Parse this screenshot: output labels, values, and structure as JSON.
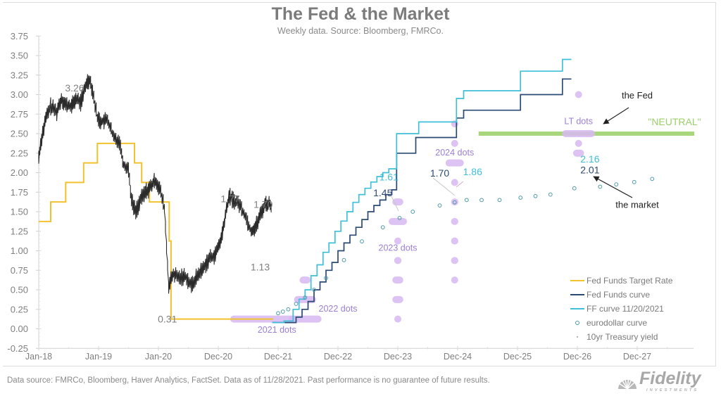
{
  "header": {
    "title": "The Fed & the Market",
    "subtitle": "Weekly data.  Source: Bloomberg, FMRCo."
  },
  "footer": {
    "disclaimer": "Data source: FMRCo, Bloomberg, Haver Analytics, FactSet. Data as of 11/28/2021. Past performance is no guarantee of future results.",
    "logo_text": "Fidelity",
    "logo_subtext": "INVESTMENTS"
  },
  "colors": {
    "fed_funds_target": "#f2c12e",
    "fed_funds_curve": "#2b4a73",
    "ff_curve_nov": "#3fbfd8",
    "eurodollar": "#4f9aa8",
    "treasury": "#2b2b2b",
    "dots": "#d7b8f2",
    "dots_label": "#9b7fd4",
    "neutral": "#a8d67a",
    "axis_text": "#7f7f7f"
  },
  "chart_data": {
    "type": "line",
    "title": "The Fed & the Market",
    "subtitle": "Weekly data.  Source: Bloomberg, FMRCo.",
    "xlabel": "",
    "ylabel": "",
    "ylim": [
      -0.25,
      3.75
    ],
    "xlim": [
      2018.0,
      2029.0
    ],
    "yticks": [
      "3.75",
      "3.50",
      "3.25",
      "3.00",
      "2.75",
      "2.50",
      "2.25",
      "2.00",
      "1.75",
      "1.50",
      "1.25",
      "1.00",
      "0.75",
      "0.50",
      "0.25",
      "0.00",
      "-0.25"
    ],
    "ytick_values": [
      3.75,
      3.5,
      3.25,
      3.0,
      2.75,
      2.5,
      2.25,
      2.0,
      1.75,
      1.5,
      1.25,
      1.0,
      0.75,
      0.5,
      0.25,
      0.0,
      -0.25
    ],
    "xticks": [
      {
        "label": "Jan-18",
        "x": 2018.0
      },
      {
        "label": "Jan-19",
        "x": 2019.0
      },
      {
        "label": "Jan-20",
        "x": 2020.0
      },
      {
        "label": "Dec-20",
        "x": 2021.0
      },
      {
        "label": "Dec-21",
        "x": 2022.0
      },
      {
        "label": "Dec-22",
        "x": 2023.0
      },
      {
        "label": "Dec-23",
        "x": 2024.0
      },
      {
        "label": "Dec-24",
        "x": 2025.0
      },
      {
        "label": "Dec-25",
        "x": 2026.0
      },
      {
        "label": "Dec-26",
        "x": 2027.0
      },
      {
        "label": "Dec-27",
        "x": 2028.0
      }
    ],
    "grid": false,
    "legend_position": "bottom-right",
    "legend": [
      {
        "label": "Fed Funds Target Rate",
        "kind": "line",
        "color_key": "fed_funds_target"
      },
      {
        "label": "Fed Funds curve",
        "kind": "line",
        "color_key": "fed_funds_curve"
      },
      {
        "label": "FF curve 11/20/2021",
        "kind": "line",
        "color_key": "ff_curve_nov"
      },
      {
        "label": "eurodollar curve",
        "kind": "circle",
        "color_key": "eurodollar"
      },
      {
        "label": "10yr Treasury yield",
        "kind": "dot",
        "color_key": "treasury"
      }
    ],
    "series": [
      {
        "name": "Fed Funds Target Rate",
        "style": "step",
        "points": [
          [
            2018.0,
            1.375
          ],
          [
            2018.2,
            1.375
          ],
          [
            2018.2,
            1.625
          ],
          [
            2018.45,
            1.625
          ],
          [
            2018.45,
            1.875
          ],
          [
            2018.75,
            1.875
          ],
          [
            2018.75,
            2.125
          ],
          [
            2018.98,
            2.125
          ],
          [
            2018.98,
            2.375
          ],
          [
            2019.6,
            2.375
          ],
          [
            2019.6,
            2.125
          ],
          [
            2019.72,
            2.125
          ],
          [
            2019.72,
            1.875
          ],
          [
            2019.85,
            1.875
          ],
          [
            2019.85,
            1.625
          ],
          [
            2020.18,
            1.625
          ],
          [
            2020.18,
            1.125
          ],
          [
            2020.21,
            1.125
          ],
          [
            2020.21,
            0.125
          ],
          [
            2021.92,
            0.125
          ]
        ]
      },
      {
        "name": "10yr Treasury yield",
        "style": "weekly",
        "points": [
          [
            2018.0,
            2.2
          ],
          [
            2018.05,
            2.45
          ],
          [
            2018.12,
            2.7
          ],
          [
            2018.2,
            2.85
          ],
          [
            2018.3,
            2.78
          ],
          [
            2018.38,
            2.95
          ],
          [
            2018.45,
            2.87
          ],
          [
            2018.55,
            2.85
          ],
          [
            2018.62,
            2.95
          ],
          [
            2018.7,
            2.9
          ],
          [
            2018.8,
            3.15
          ],
          [
            2018.85,
            3.2
          ],
          [
            2018.9,
            3.05
          ],
          [
            2018.98,
            2.7
          ],
          [
            2019.05,
            2.65
          ],
          [
            2019.15,
            2.68
          ],
          [
            2019.25,
            2.45
          ],
          [
            2019.35,
            2.4
          ],
          [
            2019.42,
            2.1
          ],
          [
            2019.5,
            2.05
          ],
          [
            2019.55,
            1.65
          ],
          [
            2019.62,
            1.5
          ],
          [
            2019.7,
            1.65
          ],
          [
            2019.78,
            1.75
          ],
          [
            2019.85,
            1.8
          ],
          [
            2019.95,
            1.9
          ],
          [
            2020.02,
            1.8
          ],
          [
            2020.1,
            1.55
          ],
          [
            2020.17,
            0.55
          ],
          [
            2020.25,
            0.7
          ],
          [
            2020.35,
            0.65
          ],
          [
            2020.45,
            0.68
          ],
          [
            2020.55,
            0.55
          ],
          [
            2020.65,
            0.68
          ],
          [
            2020.75,
            0.78
          ],
          [
            2020.85,
            0.9
          ],
          [
            2020.95,
            0.95
          ],
          [
            2021.05,
            1.15
          ],
          [
            2021.12,
            1.45
          ],
          [
            2021.18,
            1.7
          ],
          [
            2021.25,
            1.65
          ],
          [
            2021.35,
            1.6
          ],
          [
            2021.45,
            1.45
          ],
          [
            2021.55,
            1.25
          ],
          [
            2021.62,
            1.3
          ],
          [
            2021.7,
            1.45
          ],
          [
            2021.78,
            1.6
          ],
          [
            2021.85,
            1.6
          ],
          [
            2021.9,
            1.55
          ]
        ]
      },
      {
        "name": "Fed Funds curve",
        "style": "step",
        "points": [
          [
            2021.9,
            0.08
          ],
          [
            2022.15,
            0.08
          ],
          [
            2022.3,
            0.15
          ],
          [
            2022.4,
            0.25
          ],
          [
            2022.5,
            0.35
          ],
          [
            2022.6,
            0.5
          ],
          [
            2022.7,
            0.6
          ],
          [
            2022.8,
            0.75
          ],
          [
            2022.9,
            0.85
          ],
          [
            2023.0,
            1.0
          ],
          [
            2023.1,
            1.1
          ],
          [
            2023.2,
            1.2
          ],
          [
            2023.3,
            1.3
          ],
          [
            2023.4,
            1.4
          ],
          [
            2023.5,
            1.5
          ],
          [
            2023.6,
            1.58
          ],
          [
            2023.7,
            1.65
          ],
          [
            2023.8,
            1.72
          ],
          [
            2023.9,
            1.78
          ],
          [
            2023.98,
            1.8
          ],
          [
            2023.98,
            2.25
          ],
          [
            2024.3,
            2.25
          ],
          [
            2024.3,
            2.45
          ],
          [
            2024.98,
            2.45
          ],
          [
            2024.98,
            2.7
          ],
          [
            2025.1,
            2.7
          ],
          [
            2025.1,
            2.8
          ],
          [
            2026.0,
            2.8
          ],
          [
            2026.05,
            2.95
          ],
          [
            2026.05,
            3.0
          ],
          [
            2026.6,
            3.0
          ],
          [
            2026.75,
            3.2
          ],
          [
            2026.9,
            3.2
          ]
        ]
      },
      {
        "name": "FF curve 11/20/2021",
        "style": "step",
        "points": [
          [
            2021.9,
            0.08
          ],
          [
            2022.1,
            0.1
          ],
          [
            2022.25,
            0.25
          ],
          [
            2022.35,
            0.38
          ],
          [
            2022.45,
            0.5
          ],
          [
            2022.55,
            0.68
          ],
          [
            2022.65,
            0.82
          ],
          [
            2022.75,
            0.98
          ],
          [
            2022.85,
            1.1
          ],
          [
            2022.95,
            1.25
          ],
          [
            2023.05,
            1.38
          ],
          [
            2023.15,
            1.5
          ],
          [
            2023.25,
            1.62
          ],
          [
            2023.35,
            1.72
          ],
          [
            2023.45,
            1.8
          ],
          [
            2023.55,
            1.88
          ],
          [
            2023.65,
            1.95
          ],
          [
            2023.75,
            2.0
          ],
          [
            2023.85,
            2.05
          ],
          [
            2023.98,
            2.1
          ],
          [
            2023.98,
            2.5
          ],
          [
            2024.35,
            2.5
          ],
          [
            2024.35,
            2.65
          ],
          [
            2024.98,
            2.65
          ],
          [
            2024.98,
            2.95
          ],
          [
            2025.1,
            2.95
          ],
          [
            2025.1,
            3.05
          ],
          [
            2026.0,
            3.05
          ],
          [
            2026.05,
            3.22
          ],
          [
            2026.05,
            3.3
          ],
          [
            2026.6,
            3.3
          ],
          [
            2026.75,
            3.45
          ],
          [
            2026.9,
            3.45
          ]
        ]
      },
      {
        "name": "eurodollar curve",
        "style": "circles",
        "points": [
          [
            2022.0,
            0.2
          ],
          [
            2022.08,
            0.22
          ],
          [
            2022.17,
            0.25
          ],
          [
            2022.3,
            0.32
          ],
          [
            2022.45,
            0.4
          ],
          [
            2022.6,
            0.5
          ],
          [
            2022.8,
            0.65
          ],
          [
            2023.1,
            0.88
          ],
          [
            2023.4,
            1.12
          ],
          [
            2023.75,
            1.3
          ],
          [
            2024.03,
            1.42
          ],
          [
            2024.25,
            1.5
          ],
          [
            2024.7,
            1.58
          ],
          [
            2024.95,
            1.62
          ],
          [
            2025.15,
            1.65
          ],
          [
            2025.4,
            1.65
          ],
          [
            2025.7,
            1.65
          ],
          [
            2026.05,
            1.68
          ],
          [
            2026.3,
            1.7
          ],
          [
            2026.55,
            1.72
          ],
          [
            2026.95,
            1.8
          ],
          [
            2027.38,
            1.82
          ],
          [
            2027.65,
            1.85
          ],
          [
            2027.95,
            1.88
          ],
          [
            2028.25,
            1.92
          ]
        ]
      }
    ],
    "fed_dots": [
      {
        "year": 2021,
        "x": 2021.75,
        "values": [
          0.125
        ],
        "counts": [
          18
        ]
      },
      {
        "year": 2022,
        "x": 2022.45,
        "values": [
          0.125,
          0.375,
          0.625
        ],
        "counts": [
          9,
          6,
          3
        ]
      },
      {
        "year": 2023,
        "x": 2024.0,
        "values": [
          0.125,
          0.375,
          0.625,
          0.875,
          1.125,
          1.375,
          1.625
        ],
        "counts": [
          1,
          3,
          3,
          2,
          1,
          5,
          3
        ]
      },
      {
        "year": 2024,
        "x": 2024.95,
        "values": [
          0.625,
          0.875,
          1.125,
          1.375,
          1.625,
          1.875,
          2.125,
          2.375,
          2.625
        ],
        "counts": [
          1,
          2,
          2,
          2,
          2,
          1,
          5,
          1,
          1
        ]
      },
      {
        "year": "LT",
        "x": 2027.02,
        "values": [
          2.25,
          2.375,
          2.5,
          3.0
        ],
        "counts": [
          3,
          1,
          9,
          1
        ]
      }
    ],
    "neutral_band": {
      "value": 2.5,
      "x_start": 2025.35,
      "x_end": 2029.0,
      "label": "\"NEUTRAL\""
    },
    "annotations": [
      {
        "text": "3.26",
        "x": 2018.6,
        "y": 3.04,
        "color": "gray"
      },
      {
        "text": "0.31",
        "x": 2020.15,
        "y": 0.08,
        "color": "gray"
      },
      {
        "text": "1.77",
        "x": 2021.2,
        "y": 1.62,
        "color": "gray"
      },
      {
        "text": "1.70",
        "x": 2021.75,
        "y": 1.55,
        "color": "gray"
      },
      {
        "text": "1.13",
        "x": 2021.7,
        "y": 0.75,
        "color": "gray"
      },
      {
        "text": "1.45",
        "x": 2023.75,
        "y": 1.7,
        "color": "fed_funds_curve"
      },
      {
        "text": "1.61",
        "x": 2023.85,
        "y": 1.9,
        "color": "ff_curve_nov"
      },
      {
        "text": "1.70",
        "x": 2024.7,
        "y": 1.95,
        "color": "fed_funds_curve"
      },
      {
        "text": "1.86",
        "x": 2025.25,
        "y": 1.97,
        "color": "ff_curve_nov"
      },
      {
        "text": "2.16",
        "x": 2027.05,
        "y": 2.13,
        "color": "ff_curve_nov"
      },
      {
        "text": "2.01",
        "x": 2027.05,
        "y": 1.99,
        "color": "fed_funds_curve"
      },
      {
        "text": "2021 dots",
        "x": 2021.98,
        "y": -0.05,
        "color": "dots_label"
      },
      {
        "text": "2022 dots",
        "x": 2023.0,
        "y": 0.22,
        "color": "dots_label"
      },
      {
        "text": "2023 dots",
        "x": 2024.0,
        "y": 1.0,
        "color": "dots_label"
      },
      {
        "text": "2024 dots",
        "x": 2024.95,
        "y": 2.22,
        "color": "dots_label"
      },
      {
        "text": "LT dots",
        "x": 2027.02,
        "y": 2.62,
        "color": "dots_label"
      },
      {
        "text": "the Fed",
        "x": 2028.0,
        "y": 2.95,
        "color": "black"
      },
      {
        "text": "the market",
        "x": 2028.0,
        "y": 1.55,
        "color": "black"
      }
    ]
  }
}
